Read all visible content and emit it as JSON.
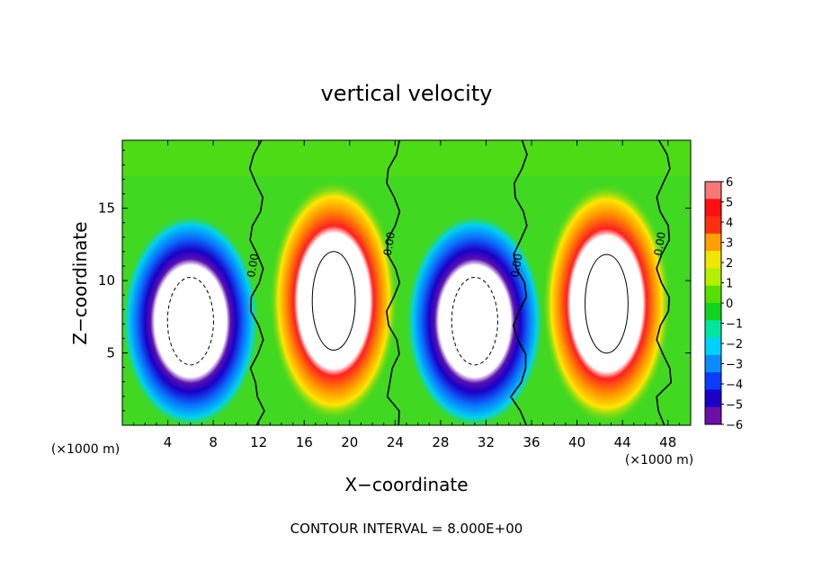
{
  "chart_data": {
    "type": "heatmap",
    "title": "vertical velocity",
    "xlabel": "X−coordinate",
    "ylabel": "Z−coordinate",
    "x_unit_left": "(×1000 m)",
    "x_unit_right": "(×1000 m)",
    "xlim": [
      0,
      50
    ],
    "ylim": [
      0,
      19.7
    ],
    "x_ticks": [
      4,
      8,
      12,
      16,
      20,
      24,
      28,
      32,
      36,
      40,
      44,
      48
    ],
    "x_tick_labels": [
      "4",
      "8",
      "12",
      "16",
      "20",
      "24",
      "28",
      "32",
      "36",
      "40",
      "44",
      "48"
    ],
    "y_ticks": [
      5,
      10,
      15
    ],
    "y_tick_labels": [
      "5",
      "10",
      "15"
    ],
    "footer": "CONTOUR INTERVAL = 8.000E+00",
    "contour_label": "0.00",
    "colorbar": {
      "levels": [
        -6,
        -5,
        -4,
        -3,
        -2,
        -1,
        0,
        1,
        2,
        3,
        4,
        5,
        6
      ],
      "tick_labels": [
        "6",
        "5",
        "4",
        "3",
        "2",
        "1",
        "0",
        "−1",
        "−2",
        "−3",
        "−4",
        "−5",
        "−6"
      ],
      "colors": [
        "#6b0fa8",
        "#1a00c8",
        "#0a3cff",
        "#0a8cff",
        "#00d2ff",
        "#00e6a0",
        "#10d420",
        "#55e000",
        "#b4f000",
        "#f0e600",
        "#ffa000",
        "#ff3010",
        "#ff1010",
        "#f87878"
      ]
    },
    "cells": [
      {
        "kind": "updraft",
        "cx": 18.6,
        "cz": 8.6,
        "rx": 4.2,
        "rz": 6.2
      },
      {
        "kind": "updraft",
        "cx": 42.6,
        "cz": 8.4,
        "rx": 4.2,
        "rz": 6.2
      },
      {
        "kind": "downdraft",
        "cx": 6.0,
        "cz": 7.2,
        "rx": 4.5,
        "rz": 5.5
      },
      {
        "kind": "downdraft",
        "cx": 31.0,
        "cz": 7.2,
        "rx": 4.5,
        "rz": 5.5
      }
    ]
  }
}
